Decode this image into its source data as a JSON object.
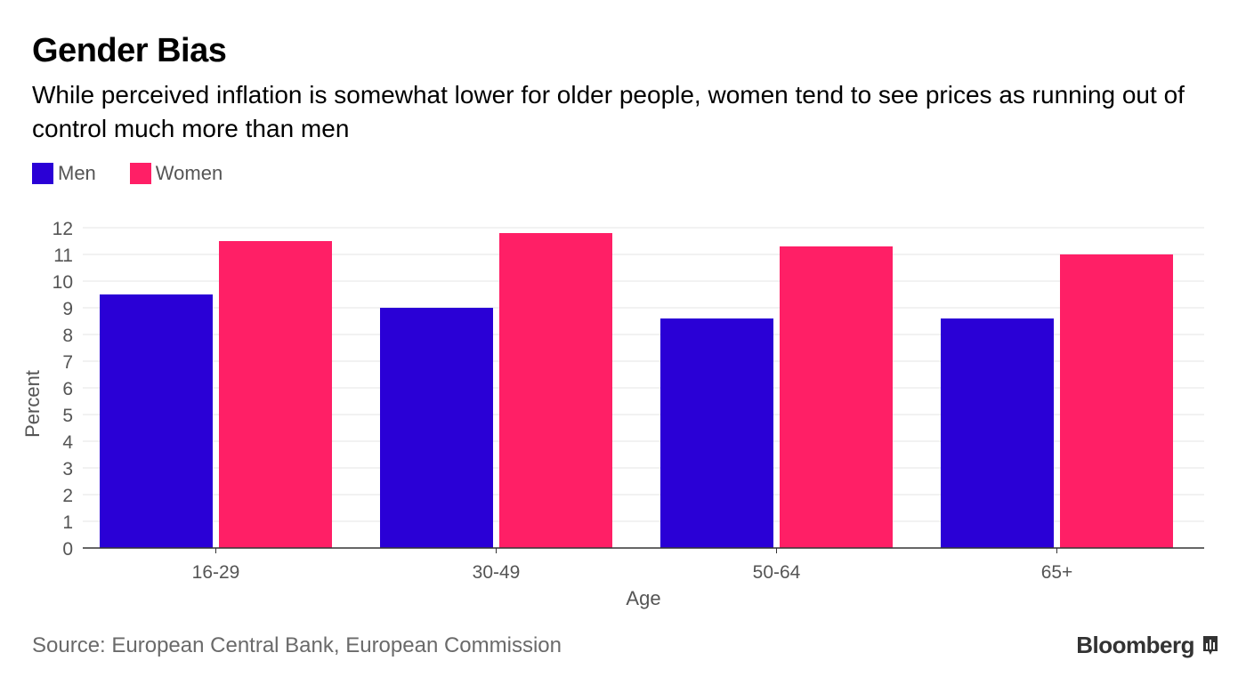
{
  "header": {
    "title": "Gender Bias",
    "subtitle": "While perceived inflation is somewhat lower for older people, women tend to see prices as running out of control much more than men"
  },
  "legend": [
    {
      "label": "Men",
      "color": "#2a00d6"
    },
    {
      "label": "Women",
      "color": "#ff1f66"
    }
  ],
  "footer": {
    "source": "Source: European Central Bank, European Commission",
    "brand": "Bloomberg",
    "brand_icon": "bloomberg-chart-icon"
  },
  "chart_data": {
    "type": "bar",
    "title": "Gender Bias",
    "subtitle": "While perceived inflation is somewhat lower for older people, women tend to see prices as running out of control much more than men",
    "categories": [
      "16-29",
      "30-49",
      "50-64",
      "65+"
    ],
    "series": [
      {
        "name": "Men",
        "color": "#2a00d6",
        "values": [
          9.5,
          9.0,
          8.6,
          8.6
        ]
      },
      {
        "name": "Women",
        "color": "#ff1f66",
        "values": [
          11.5,
          11.8,
          11.3,
          11.0
        ]
      }
    ],
    "xlabel": "Age",
    "ylabel": "Percent",
    "ylim": [
      0,
      12
    ],
    "yticks": [
      0,
      1,
      2,
      3,
      4,
      5,
      6,
      7,
      8,
      9,
      10,
      11,
      12
    ],
    "grid": true,
    "legend_position": "top-left"
  }
}
